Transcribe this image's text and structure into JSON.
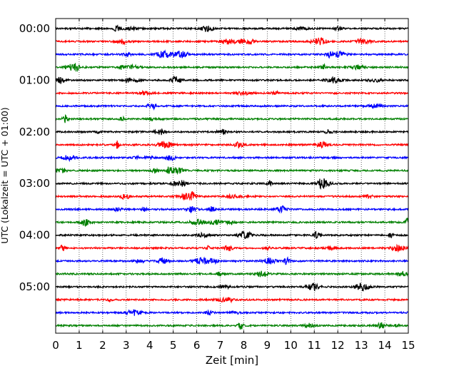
{
  "chart_data": {
    "type": "line",
    "title": "",
    "xlabel": "Zeit  [min]",
    "ylabel": "UTC (Lokalzeit = UTC + 01:00)",
    "xlim": [
      0,
      15
    ],
    "x_ticks": [
      0,
      1,
      2,
      3,
      4,
      5,
      6,
      7,
      8,
      9,
      10,
      11,
      12,
      13,
      14,
      15
    ],
    "x_tick_labels": [
      "0",
      "1",
      "2",
      "3",
      "4",
      "5",
      "6",
      "7",
      "8",
      "9",
      "10",
      "11",
      "12",
      "13",
      "14",
      "15"
    ],
    "y_tick_labels": [
      "00:00",
      "01:00",
      "02:00",
      "03:00",
      "04:00",
      "05:00"
    ],
    "y_tick_hours": [
      0,
      1,
      2,
      3,
      4,
      5
    ],
    "trace_interval_minutes": 15,
    "trace_count": 24,
    "trace_color_cycle": [
      "#000000",
      "#ff0000",
      "#0000ff",
      "#008000"
    ],
    "grid": {
      "vertical": true,
      "style": "dotted"
    },
    "legend": "none"
  }
}
